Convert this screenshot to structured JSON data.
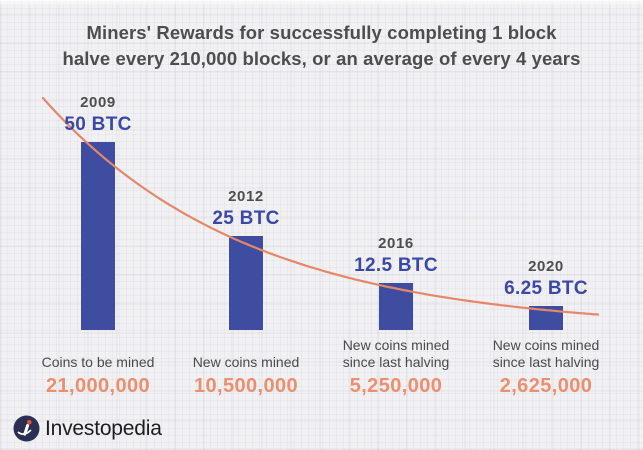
{
  "title": {
    "line1": "Miners' Rewards for successfully completing 1 block",
    "line2": "halve every 210,000 blocks, or an average of every 4 years"
  },
  "chart_data": {
    "type": "bar",
    "title": "Miners' Rewards for successfully completing 1 block halve every 210,000 blocks, or an average of every 4 years",
    "categories": [
      "2009",
      "2012",
      "2016",
      "2020"
    ],
    "series": [
      {
        "name": "Block reward (BTC)",
        "values": [
          50,
          25,
          12.5,
          6.25
        ]
      }
    ],
    "ylim": [
      0,
      50
    ],
    "grid": "subtle plaid background, no axes",
    "legend": "none",
    "overlay": "orange exponential-decay curve passing through bar tops",
    "columns": [
      {
        "year": "2009",
        "btc": "50 BTC",
        "caption": [
          "Coins to be mined"
        ],
        "amount": "21,000,000"
      },
      {
        "year": "2012",
        "btc": "25 BTC",
        "caption": [
          "New coins mined"
        ],
        "amount": "10,500,000"
      },
      {
        "year": "2016",
        "btc": "12.5 BTC",
        "caption": [
          "New coins mined",
          "since last halving"
        ],
        "amount": "5,250,000"
      },
      {
        "year": "2020",
        "btc": "6.25 BTC",
        "caption": [
          "New coins mined",
          "since last halving"
        ],
        "amount": "2,625,000"
      }
    ]
  },
  "branding": {
    "logo_text": "Investopedia"
  },
  "colors": {
    "background": "#f1f0f2",
    "title": "#4d4d4d",
    "year": "#4e4e4e",
    "btc_label": "#3a48a6",
    "bar": "#3f4da0",
    "curve": "#e4876a",
    "caption": "#4a4a4a",
    "amount": "#ec8f6e",
    "logo_circle": "#2b2f54",
    "logo_dot": "#e2552e"
  }
}
